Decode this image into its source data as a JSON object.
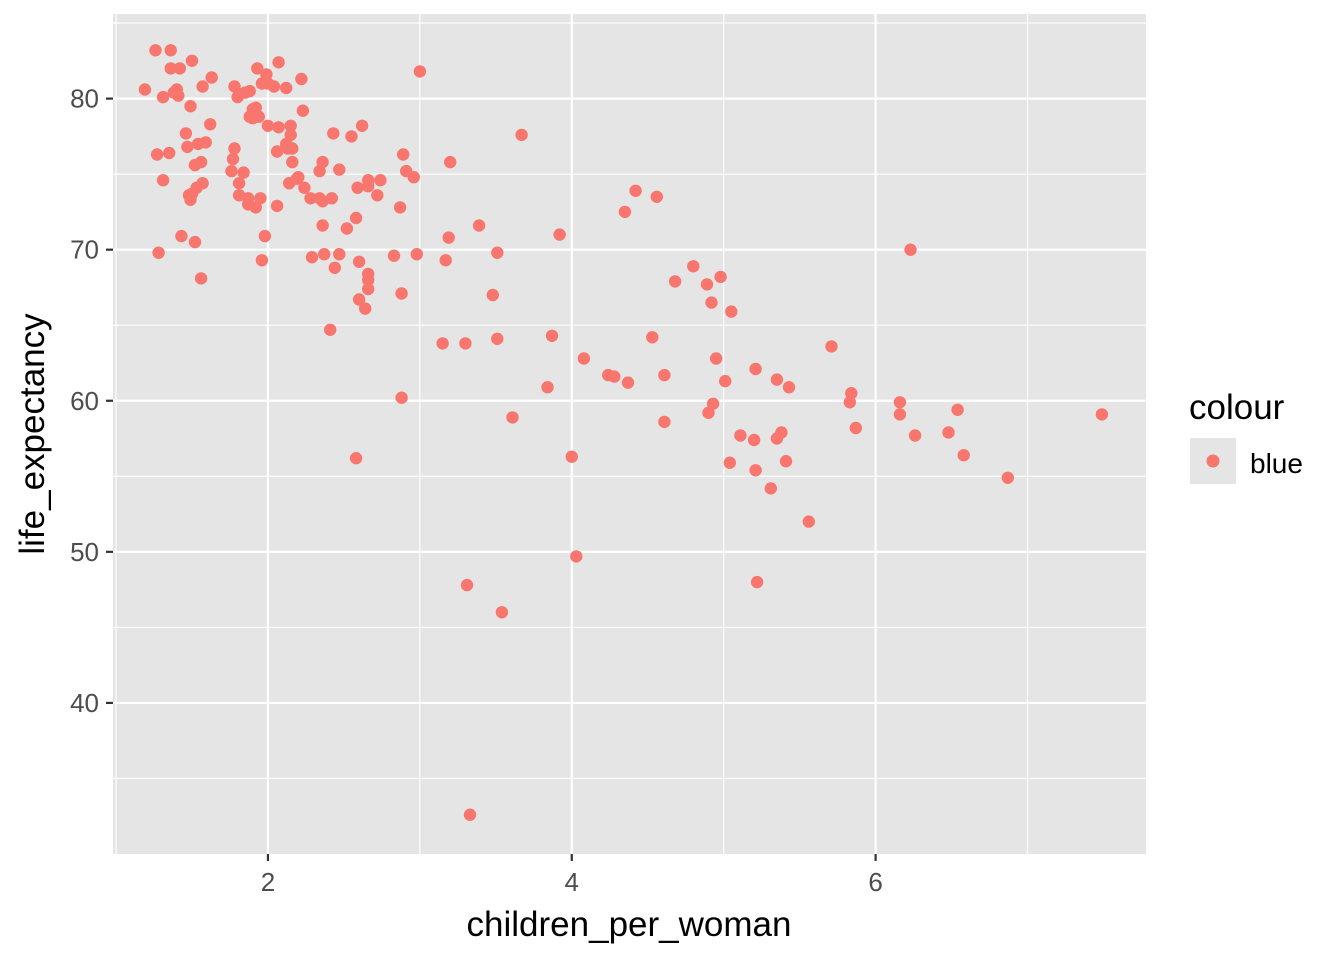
{
  "chart_data": {
    "type": "scatter",
    "xlabel": "children_per_woman",
    "ylabel": "life_expectancy",
    "xlim": [
      0.98,
      7.78
    ],
    "ylim": [
      30.0,
      85.6
    ],
    "x_ticks": [
      2,
      4,
      6
    ],
    "x_tick_labels": [
      "2",
      "4",
      "6"
    ],
    "y_ticks": [
      40,
      50,
      60,
      70,
      80
    ],
    "y_tick_labels": [
      "40",
      "50",
      "60",
      "70",
      "80"
    ],
    "grid": true,
    "panel_background": "#e5e5e5",
    "grid_color": "#ffffff",
    "point_color": "#f8766d",
    "legend": {
      "title": "colour",
      "position": "right",
      "entries": [
        "blue"
      ]
    },
    "series": [
      {
        "x": [
          1.19,
          1.26,
          1.36,
          1.5,
          1.27,
          1.31,
          1.35,
          1.41,
          1.4,
          1.38,
          1.42,
          1.31,
          1.36,
          1.49,
          1.57,
          1.63,
          1.28,
          1.46,
          1.62,
          1.59,
          1.54,
          1.52,
          1.47,
          1.5,
          1.48,
          1.56,
          1.57,
          1.49,
          1.53,
          1.43,
          1.52,
          1.56,
          1.78,
          1.85,
          1.8,
          1.81,
          1.93,
          1.99,
          2.04,
          2.07,
          2.0,
          2.12,
          1.96,
          1.9,
          1.88,
          1.92,
          1.88,
          1.9,
          1.94,
          2.0,
          2.07,
          2.22,
          2.23,
          2.15,
          2.06,
          2.16,
          2.15,
          2.13,
          2.19,
          2.14,
          2.12,
          2.16,
          1.78,
          1.77,
          1.76,
          1.84,
          1.81,
          1.81,
          1.87,
          1.87,
          1.92,
          1.95,
          1.98,
          2.06,
          1.96,
          2.2,
          2.24,
          2.28,
          2.34,
          2.36,
          2.43,
          2.47,
          2.55,
          2.62,
          2.89,
          3.0,
          2.36,
          2.36,
          2.59,
          2.66,
          2.74,
          2.91,
          2.96,
          2.34,
          2.42,
          2.58,
          2.66,
          2.72,
          2.87,
          2.52,
          2.37,
          2.6,
          2.44,
          2.47,
          2.66,
          2.29,
          2.66,
          2.66,
          2.6,
          2.64,
          2.41,
          2.83,
          2.88,
          2.98,
          2.88,
          2.58,
          3.2,
          3.19,
          3.39,
          3.17,
          3.51,
          3.15,
          3.3,
          3.51,
          3.48,
          3.67,
          3.87,
          3.92,
          3.61,
          3.84,
          4.42,
          4.56,
          4.35,
          4.08,
          4.24,
          4.28,
          4.37,
          4.53,
          4.61,
          4.61,
          4.68,
          4.8,
          4.89,
          4.98,
          4.92,
          5.05,
          4.9,
          4.93,
          4.95,
          5.01,
          5.21,
          5.35,
          5.43,
          5.71,
          5.84,
          5.83,
          5.87,
          6.16,
          6.16,
          6.23,
          6.26,
          6.48,
          6.54,
          6.58,
          6.87,
          7.49,
          5.11,
          5.21,
          5.38,
          5.35,
          5.04,
          5.2,
          5.41,
          5.31,
          5.56,
          4.0,
          4.03,
          5.22,
          3.31,
          3.54,
          3.33
        ],
        "y": [
          80.6,
          83.2,
          83.2,
          82.5,
          76.3,
          74.6,
          76.4,
          80.2,
          80.6,
          80.4,
          82.0,
          80.1,
          82.0,
          79.5,
          80.8,
          81.4,
          69.8,
          77.7,
          78.3,
          77.1,
          77.0,
          75.6,
          76.8,
          73.7,
          73.6,
          75.8,
          74.4,
          73.3,
          74.1,
          70.9,
          70.5,
          68.1,
          80.8,
          80.4,
          80.1,
          80.3,
          82.0,
          81.6,
          80.8,
          82.4,
          81.0,
          80.7,
          81.0,
          79.3,
          80.5,
          79.4,
          78.8,
          78.7,
          78.8,
          78.2,
          78.1,
          81.3,
          79.2,
          77.6,
          76.5,
          75.8,
          78.2,
          76.7,
          74.7,
          74.4,
          77.0,
          76.7,
          76.7,
          76.0,
          75.2,
          75.1,
          74.4,
          73.6,
          73.4,
          73.0,
          72.8,
          73.4,
          70.9,
          72.9,
          69.3,
          74.8,
          74.1,
          73.4,
          75.2,
          75.8,
          77.7,
          75.3,
          77.5,
          78.2,
          76.3,
          81.8,
          73.2,
          71.6,
          74.1,
          74.6,
          74.6,
          75.2,
          74.8,
          73.4,
          73.4,
          72.1,
          74.2,
          73.6,
          72.8,
          71.4,
          69.7,
          69.2,
          68.8,
          69.7,
          68.4,
          69.5,
          68.0,
          67.4,
          66.7,
          66.1,
          64.7,
          69.6,
          67.1,
          69.7,
          60.2,
          56.2,
          75.8,
          70.8,
          71.6,
          69.3,
          69.8,
          63.8,
          63.8,
          64.1,
          67.0,
          77.6,
          64.3,
          71.0,
          58.9,
          60.9,
          73.9,
          73.5,
          72.5,
          62.8,
          61.7,
          61.6,
          61.2,
          64.2,
          61.7,
          58.6,
          67.9,
          68.9,
          67.7,
          68.2,
          66.5,
          65.9,
          59.2,
          59.8,
          62.8,
          61.3,
          62.1,
          61.4,
          60.9,
          63.6,
          60.5,
          59.9,
          58.2,
          59.9,
          59.1,
          70.0,
          57.7,
          57.9,
          59.4,
          56.4,
          54.9,
          59.1,
          57.7,
          55.4,
          57.9,
          57.5,
          55.9,
          57.4,
          56.0,
          54.2,
          52.0,
          56.3,
          49.7,
          48.0,
          47.8,
          46.0,
          32.6
        ]
      }
    ]
  }
}
